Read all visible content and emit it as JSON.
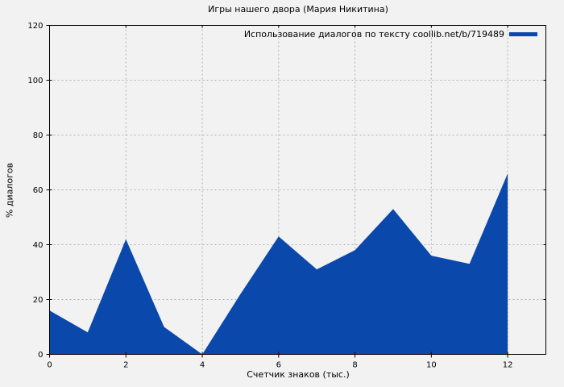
{
  "chart_data": {
    "type": "area",
    "title": "Игры нашего двора (Мария Никитина)",
    "xlabel": "Счетчик знаков (тыс.)",
    "ylabel": "% диалогов",
    "legend": [
      {
        "name": "Использование диалогов по тексту coollib.net/b/719489",
        "color": "#0b48ac"
      }
    ],
    "legend_position": "top-right",
    "x": [
      0,
      1,
      2,
      3,
      4,
      5,
      6,
      7,
      8,
      9,
      10,
      11,
      12
    ],
    "values": [
      16,
      8,
      42,
      10,
      0,
      22,
      43,
      31,
      38,
      53,
      36,
      33,
      66
    ],
    "xlim": [
      0,
      13
    ],
    "ylim": [
      0,
      120
    ],
    "xticks": [
      0,
      2,
      4,
      6,
      8,
      10,
      12
    ],
    "yticks": [
      0,
      20,
      40,
      60,
      80,
      100,
      120
    ],
    "grid": true
  },
  "colors": {
    "background": "#f2f2f2",
    "fill": "#0b48ac",
    "grid": "#b0b0b0",
    "border": "#000000",
    "text": "#000000"
  }
}
